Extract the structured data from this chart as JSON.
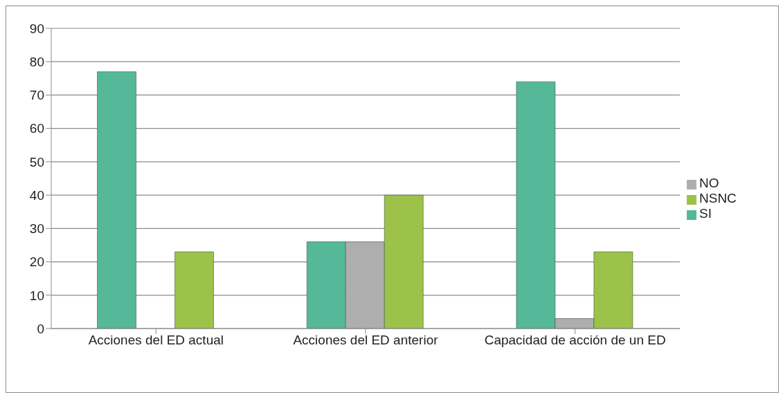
{
  "chart_data": {
    "type": "bar",
    "categories": [
      "Acciones del ED actual",
      "Acciones del ED anterior",
      "Capacidad de acción de un ED"
    ],
    "series": [
      {
        "name": "SI",
        "color": "#55b899",
        "values": [
          77,
          26,
          74
        ]
      },
      {
        "name": "NO",
        "color": "#aeaeae",
        "values": [
          0,
          26,
          3
        ]
      },
      {
        "name": "NSNC",
        "color": "#9cc24a",
        "values": [
          23,
          40,
          23
        ]
      }
    ],
    "ylim": [
      0,
      90
    ],
    "yticks": [
      0,
      10,
      20,
      30,
      40,
      50,
      60,
      70,
      80,
      90
    ],
    "grid": "y",
    "legend": "right"
  }
}
